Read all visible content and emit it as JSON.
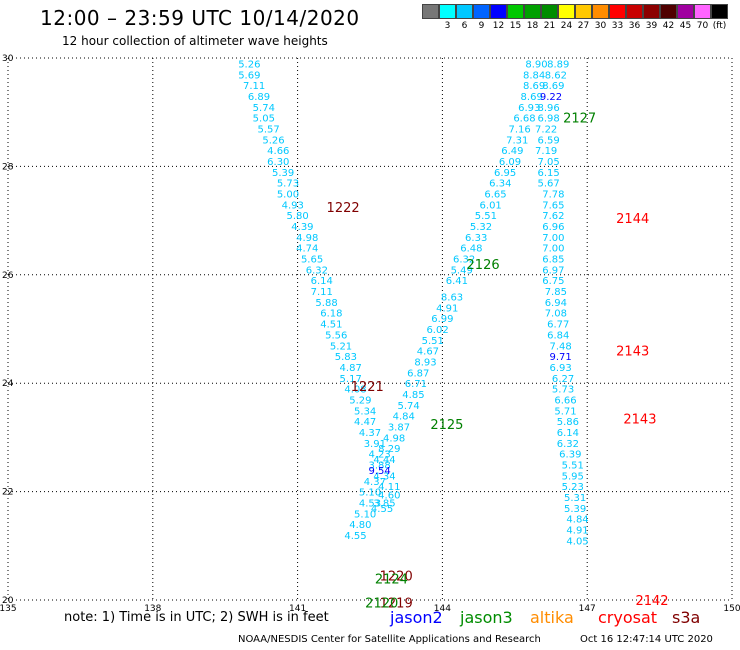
{
  "header": {
    "title": "12:00 – 23:59 UTC 10/14/2020",
    "subtitle": "12 hour collection of altimeter wave heights"
  },
  "legend": {
    "swatches": [
      {
        "label": "",
        "color": "#777777"
      },
      {
        "label": "3",
        "color": "#00ffff"
      },
      {
        "label": "6",
        "color": "#00c8ff"
      },
      {
        "label": "9",
        "color": "#0064ff"
      },
      {
        "label": "12",
        "color": "#0000ff"
      },
      {
        "label": "15",
        "color": "#00c800"
      },
      {
        "label": "18",
        "color": "#00a000"
      },
      {
        "label": "21",
        "color": "#008c00"
      },
      {
        "label": "24",
        "color": "#ffff00"
      },
      {
        "label": "27",
        "color": "#ffc800"
      },
      {
        "label": "30",
        "color": "#ff8c00"
      },
      {
        "label": "33",
        "color": "#ff0000"
      },
      {
        "label": "36",
        "color": "#c80000"
      },
      {
        "label": "39",
        "color": "#8c0000"
      },
      {
        "label": "42",
        "color": "#500000"
      },
      {
        "label": "45",
        "color": "#a000a0"
      },
      {
        "label": "70",
        "color": "#ff64ff"
      },
      {
        "label": "(ft)",
        "color": "#000000"
      }
    ]
  },
  "chart_data": {
    "type": "scatter",
    "title": "12:00 – 23:59 UTC 10/14/2020",
    "xlim": [
      135,
      150
    ],
    "ylim": [
      20,
      30
    ],
    "x_ticks": [
      135,
      138,
      141,
      144,
      147,
      150
    ],
    "x_tick_labels": [
      "135",
      "138",
      "141",
      "144",
      "147",
      "150"
    ],
    "y_ticks": [
      20,
      22,
      24,
      26,
      28,
      30
    ],
    "y_tick_labels": [
      "20",
      "22",
      "24",
      "26",
      "28",
      "30"
    ],
    "grid": true,
    "track_labels": [
      {
        "text": "1222",
        "x": 141.6,
        "y": 27.25,
        "color": "#800000"
      },
      {
        "text": "1221",
        "x": 142.1,
        "y": 23.95,
        "color": "#800000"
      },
      {
        "text": "1220",
        "x": 142.7,
        "y": 20.45,
        "color": "#800000"
      },
      {
        "text": "1219",
        "x": 142.7,
        "y": 19.95,
        "color": "#800000"
      },
      {
        "text": "2127",
        "x": 146.5,
        "y": 28.9,
        "color": "#008000"
      },
      {
        "text": "2126",
        "x": 144.5,
        "y": 26.2,
        "color": "#008000"
      },
      {
        "text": "2125",
        "x": 143.75,
        "y": 23.25,
        "color": "#008000"
      },
      {
        "text": "2124",
        "x": 142.6,
        "y": 20.4,
        "color": "#008000"
      },
      {
        "text": "2120",
        "x": 142.4,
        "y": 19.95,
        "color": "#008000"
      },
      {
        "text": "2144",
        "x": 147.6,
        "y": 27.05,
        "color": "#ff0000"
      },
      {
        "text": "2143",
        "x": 147.6,
        "y": 24.6,
        "color": "#ff0000"
      },
      {
        "text": "2143",
        "x": 147.75,
        "y": 23.35,
        "color": "#ff0000"
      },
      {
        "text": "2142",
        "x": 148.0,
        "y": 20.0,
        "color": "#ff0000"
      }
    ],
    "series": [
      {
        "color": "#00c8ff",
        "points": [
          [
            140.0,
            29.9,
            "5.26"
          ],
          [
            140.0,
            29.7,
            "5.69"
          ],
          [
            140.1,
            29.5,
            "7.11"
          ],
          [
            140.2,
            29.3,
            "6.89"
          ],
          [
            140.3,
            29.1,
            "5.74"
          ],
          [
            140.3,
            28.9,
            "5.05"
          ],
          [
            140.4,
            28.7,
            "5.57"
          ],
          [
            140.5,
            28.5,
            "5.26"
          ],
          [
            140.6,
            28.3,
            "4.66"
          ],
          [
            140.6,
            28.1,
            "6.30"
          ],
          [
            140.7,
            27.9,
            "5.39"
          ],
          [
            140.8,
            27.7,
            "5.73"
          ],
          [
            140.8,
            27.5,
            "5.00"
          ],
          [
            140.9,
            27.3,
            "4.93"
          ],
          [
            141.0,
            27.1,
            "5.80"
          ],
          [
            141.1,
            26.9,
            "4.39"
          ],
          [
            141.2,
            26.7,
            "4.98"
          ],
          [
            141.2,
            26.5,
            "4.74"
          ],
          [
            141.3,
            26.3,
            "5.65"
          ],
          [
            141.4,
            26.1,
            "6.32"
          ],
          [
            141.5,
            25.9,
            "6.14"
          ],
          [
            141.5,
            25.7,
            "7.11"
          ],
          [
            141.6,
            25.5,
            "5.88"
          ],
          [
            141.7,
            25.3,
            "6.18"
          ],
          [
            141.7,
            25.1,
            "4.51"
          ],
          [
            141.8,
            24.9,
            "5.56"
          ],
          [
            141.9,
            24.7,
            "5.21"
          ],
          [
            142.0,
            24.5,
            "5.83"
          ],
          [
            142.1,
            24.3,
            "4.87"
          ],
          [
            142.1,
            24.1,
            "5.17"
          ],
          [
            142.2,
            23.9,
            "4.08"
          ],
          [
            142.3,
            23.7,
            "5.29"
          ],
          [
            142.4,
            23.5,
            "5.34"
          ],
          [
            142.4,
            23.3,
            "4.47"
          ],
          [
            142.5,
            23.1,
            "4.37"
          ],
          [
            142.6,
            22.9,
            "3.91"
          ],
          [
            142.7,
            22.7,
            "4.23"
          ],
          [
            142.7,
            22.5,
            "3.88"
          ],
          [
            142.8,
            22.3,
            "4.34"
          ],
          [
            142.9,
            22.1,
            "4.11"
          ],
          [
            142.9,
            21.95,
            "4.60"
          ],
          [
            142.8,
            21.8,
            "3.85"
          ],
          [
            142.75,
            21.7,
            "4.55"
          ]
        ]
      },
      {
        "color": "#00c8ff",
        "points": [
          [
            145.95,
            29.9,
            "8.90"
          ],
          [
            145.9,
            29.7,
            "8.84"
          ],
          [
            145.9,
            29.5,
            "8.69"
          ],
          [
            145.85,
            29.3,
            "8.69"
          ],
          [
            145.8,
            29.1,
            "6.93"
          ],
          [
            145.7,
            28.9,
            "6.68"
          ],
          [
            145.6,
            28.7,
            "7.16"
          ],
          [
            145.55,
            28.5,
            "7.31"
          ],
          [
            145.45,
            28.3,
            "6.49"
          ],
          [
            145.4,
            28.1,
            "6.09"
          ],
          [
            145.3,
            27.9,
            "6.95"
          ],
          [
            145.2,
            27.7,
            "6.34"
          ],
          [
            145.1,
            27.5,
            "6.65"
          ],
          [
            145.0,
            27.3,
            "6.01"
          ],
          [
            144.9,
            27.1,
            "5.51"
          ],
          [
            144.8,
            26.9,
            "5.32"
          ],
          [
            144.7,
            26.7,
            "6.33"
          ],
          [
            144.6,
            26.5,
            "6.48"
          ],
          [
            144.45,
            26.3,
            "6.32"
          ],
          [
            144.4,
            26.1,
            "5.49"
          ],
          [
            144.3,
            25.9,
            "6.41"
          ],
          [
            144.2,
            25.6,
            "8.63"
          ],
          [
            144.1,
            25.4,
            "4.91"
          ],
          [
            144.0,
            25.2,
            "6.99"
          ],
          [
            143.9,
            25.0,
            "6.02"
          ],
          [
            143.8,
            24.8,
            "5.51"
          ],
          [
            143.7,
            24.6,
            "4.67"
          ],
          [
            143.65,
            24.4,
            "8.93"
          ],
          [
            143.5,
            24.2,
            "6.87"
          ],
          [
            143.45,
            24.0,
            "6.71"
          ],
          [
            143.4,
            23.8,
            "4.85"
          ],
          [
            143.3,
            23.6,
            "5.74"
          ],
          [
            143.2,
            23.4,
            "4.84"
          ],
          [
            143.1,
            23.2,
            "3.87"
          ],
          [
            143.0,
            23.0,
            "4.98"
          ],
          [
            142.9,
            22.8,
            "8.29"
          ],
          [
            142.8,
            22.6,
            "4.44"
          ],
          [
            142.7,
            22.4,
            "9.54"
          ],
          [
            142.6,
            22.2,
            "4.37"
          ],
          [
            142.5,
            22.0,
            "5.10"
          ],
          [
            142.5,
            21.8,
            "4.53"
          ],
          [
            142.4,
            21.6,
            "5.10"
          ],
          [
            142.3,
            21.4,
            "4.80"
          ],
          [
            142.2,
            21.2,
            "4.55"
          ]
        ]
      },
      {
        "color": "#00c8ff",
        "points": [
          [
            146.4,
            29.9,
            "8.89"
          ],
          [
            146.35,
            29.7,
            "8.62"
          ],
          [
            146.3,
            29.5,
            "8.69"
          ],
          [
            146.25,
            29.3,
            "9.22"
          ],
          [
            146.2,
            29.1,
            "8.96"
          ],
          [
            146.2,
            28.9,
            "6.98"
          ],
          [
            146.15,
            28.7,
            "7.22"
          ],
          [
            146.2,
            28.5,
            "6.59"
          ],
          [
            146.15,
            28.3,
            "7.19"
          ],
          [
            146.2,
            28.1,
            "7.05"
          ],
          [
            146.2,
            27.9,
            "6.15"
          ],
          [
            146.2,
            27.7,
            "5.67"
          ],
          [
            146.3,
            27.5,
            "7.78"
          ],
          [
            146.3,
            27.3,
            "7.65"
          ],
          [
            146.3,
            27.1,
            "7.62"
          ],
          [
            146.3,
            26.9,
            "6.96"
          ],
          [
            146.3,
            26.7,
            "7.00"
          ],
          [
            146.3,
            26.5,
            "7.00"
          ],
          [
            146.3,
            26.3,
            "6.85"
          ],
          [
            146.3,
            26.1,
            "6.97"
          ],
          [
            146.3,
            25.9,
            "6.75"
          ],
          [
            146.35,
            25.7,
            "7.85"
          ],
          [
            146.35,
            25.5,
            "6.94"
          ],
          [
            146.35,
            25.3,
            "7.08"
          ],
          [
            146.4,
            25.1,
            "6.77"
          ],
          [
            146.4,
            24.9,
            "6.84"
          ],
          [
            146.45,
            24.7,
            "7.48"
          ],
          [
            146.45,
            24.5,
            "9.71"
          ],
          [
            146.45,
            24.3,
            "6.93"
          ],
          [
            146.5,
            24.1,
            "6.27"
          ],
          [
            146.5,
            23.9,
            "5.73"
          ],
          [
            146.55,
            23.7,
            "6.66"
          ],
          [
            146.55,
            23.5,
            "5.71"
          ],
          [
            146.6,
            23.3,
            "5.86"
          ],
          [
            146.6,
            23.1,
            "6.14"
          ],
          [
            146.6,
            22.9,
            "6.32"
          ],
          [
            146.65,
            22.7,
            "6.39"
          ],
          [
            146.7,
            22.5,
            "5.51"
          ],
          [
            146.7,
            22.3,
            "5.95"
          ],
          [
            146.7,
            22.1,
            "5.23"
          ],
          [
            146.75,
            21.9,
            "5.31"
          ],
          [
            146.75,
            21.7,
            "5.39"
          ],
          [
            146.8,
            21.5,
            "4.84"
          ],
          [
            146.8,
            21.3,
            "4.91"
          ],
          [
            146.8,
            21.1,
            "4.05"
          ]
        ]
      }
    ]
  },
  "footer": {
    "note": "note:  1) Time is in UTC;  2) SWH is in feet",
    "satellites": [
      {
        "name": "jason2",
        "color": "#0000ff"
      },
      {
        "name": "jason3",
        "color": "#008c00"
      },
      {
        "name": "altika",
        "color": "#ff8c00"
      },
      {
        "name": "cryosat",
        "color": "#ff0000"
      },
      {
        "name": "s3a",
        "color": "#800000"
      }
    ],
    "credit": "NOAA/NESDIS Center for Satellite Applications and Research",
    "timestamp": "Oct 16 12:47:14 UTC 2020"
  }
}
